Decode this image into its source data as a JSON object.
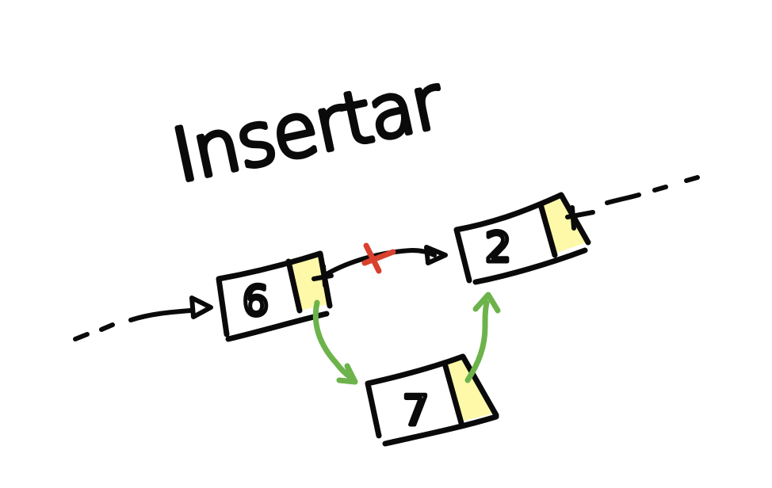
{
  "title": "Insertar",
  "nodes": [
    {
      "id": "node-6",
      "value": "6"
    },
    {
      "id": "node-2",
      "value": "2"
    },
    {
      "id": "node-7",
      "value": "7"
    }
  ],
  "colors": {
    "ink": "#0a0a0a",
    "pointer_fill": "#fdf9a8",
    "new_link": "#6db34b",
    "removed_link": "#d9402e"
  }
}
